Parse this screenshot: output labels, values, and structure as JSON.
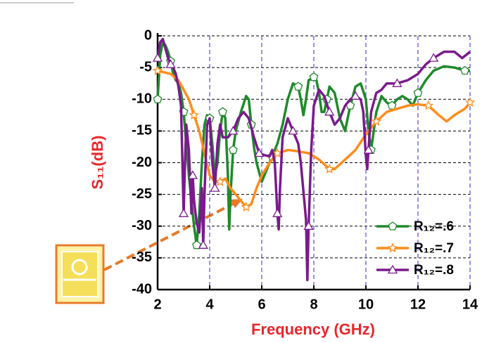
{
  "chart_data": {
    "type": "line",
    "xlabel": "Frequency (GHz)",
    "ylabel": "S₁₁(dB)",
    "xlim": [
      2,
      14
    ],
    "xticks": [
      2,
      4,
      6,
      8,
      10,
      12,
      14
    ],
    "ylim": [
      -40,
      0
    ],
    "yticks": [
      0,
      -5,
      -10,
      -15,
      -20,
      -25,
      -30,
      -35,
      -40
    ],
    "grid": true,
    "xgrid_color": "#2a2ae0",
    "ygrid_color": "#000000",
    "legend": "lower right",
    "series": [
      {
        "name": "R₁₂=.6",
        "color": "#1e8a2a",
        "marker": "pentagon",
        "x": [
          2.0,
          2.1,
          2.2,
          2.3,
          2.4,
          2.5,
          2.6,
          2.7,
          2.8,
          2.9,
          3.0,
          3.1,
          3.2,
          3.3,
          3.4,
          3.5,
          3.6,
          3.7,
          3.8,
          3.9,
          4.0,
          4.1,
          4.2,
          4.3,
          4.4,
          4.5,
          4.6,
          4.7,
          4.75,
          4.8,
          4.9,
          5.0,
          5.2,
          5.4,
          5.5,
          5.6,
          5.7,
          5.8,
          6.0,
          6.2,
          6.4,
          6.6,
          6.8,
          7.0,
          7.2,
          7.4,
          7.5,
          7.6,
          7.7,
          7.8,
          8.0,
          8.1,
          8.2,
          8.3,
          8.4,
          8.5,
          8.6,
          8.8,
          9.0,
          9.2,
          9.4,
          9.6,
          9.8,
          10.0,
          10.1,
          10.2,
          10.3,
          10.4,
          10.6,
          10.8,
          11.0,
          11.2,
          11.4,
          11.6,
          11.8,
          12.0,
          12.3,
          12.6,
          13.0,
          13.4,
          13.8,
          14.0
        ],
        "values": [
          -10,
          -3,
          -1,
          -1.5,
          -2.5,
          -4,
          -6,
          -7,
          -7.5,
          -9,
          -12,
          -17,
          -22,
          -26,
          -30,
          -33,
          -28,
          -20,
          -14,
          -12.5,
          -13,
          -17,
          -22,
          -20,
          -15,
          -12,
          -13,
          -22,
          -30.5,
          -25,
          -18,
          -15,
          -12,
          -9.5,
          -10,
          -14,
          -17.5,
          -20,
          -23,
          -21,
          -19,
          -17,
          -14,
          -10,
          -7.5,
          -8,
          -10,
          -12.5,
          -10,
          -7,
          -6.5,
          -7,
          -9,
          -12,
          -12,
          -10,
          -8,
          -9,
          -13,
          -15,
          -11,
          -8,
          -7.5,
          -10,
          -15,
          -18,
          -15,
          -12,
          -9.5,
          -10.5,
          -11,
          -10,
          -9.5,
          -10,
          -11,
          -9,
          -7,
          -5.5,
          -4.8,
          -5,
          -5.5,
          -5.5
        ]
      },
      {
        "name": "R₁₂=.7",
        "color": "#ff8c1a",
        "marker": "star",
        "x": [
          2.0,
          2.5,
          2.8,
          3.0,
          3.2,
          3.4,
          3.6,
          3.8,
          4.0,
          4.2,
          4.4,
          4.6,
          4.8,
          5.0,
          5.2,
          5.4,
          5.6,
          5.8,
          6.0,
          6.3,
          6.6,
          7.0,
          7.4,
          7.8,
          8.2,
          8.6,
          8.8,
          9.2,
          9.6,
          10.0,
          10.4,
          10.8,
          11.2,
          11.6,
          12.0,
          12.4,
          12.8,
          13.1,
          13.4,
          13.8,
          14.0
        ],
        "values": [
          -5.5,
          -6,
          -7,
          -8.5,
          -10,
          -12.5,
          -15,
          -18.5,
          -22,
          -23,
          -23,
          -22.5,
          -24,
          -25,
          -26,
          -27,
          -26.5,
          -24,
          -22,
          -20,
          -18.5,
          -18,
          -18.2,
          -18.5,
          -19.5,
          -21,
          -21,
          -19.5,
          -18,
          -15.5,
          -13.5,
          -12,
          -11.5,
          -11,
          -10.8,
          -11,
          -12.5,
          -13.5,
          -12.5,
          -11.5,
          -10.5
        ]
      },
      {
        "name": "R₁₂=.8",
        "color": "#7a1a8c",
        "marker": "triangle",
        "x": [
          2.0,
          2.1,
          2.2,
          2.3,
          2.4,
          2.5,
          2.6,
          2.7,
          2.8,
          2.9,
          3.0,
          3.05,
          3.1,
          3.2,
          3.3,
          3.35,
          3.4,
          3.5,
          3.6,
          3.7,
          3.75,
          3.8,
          3.9,
          4.0,
          4.1,
          4.2,
          4.3,
          4.4,
          4.5,
          4.7,
          4.9,
          5.1,
          5.3,
          5.5,
          5.7,
          5.9,
          6.1,
          6.3,
          6.4,
          6.5,
          6.6,
          6.65,
          6.7,
          6.8,
          7.0,
          7.2,
          7.4,
          7.5,
          7.7,
          7.75,
          7.8,
          7.9,
          8.0,
          8.2,
          8.4,
          8.6,
          8.8,
          9.0,
          9.2,
          9.4,
          9.6,
          9.8,
          9.9,
          10.0,
          10.05,
          10.1,
          10.2,
          10.4,
          10.6,
          10.8,
          11.2,
          11.6,
          11.8,
          12.0,
          12.3,
          12.6,
          13.0,
          13.4,
          13.7,
          14.0
        ],
        "values": [
          -3.5,
          -1,
          -0.5,
          -2,
          -3.5,
          -4.5,
          -5,
          -6,
          -8,
          -11,
          -28,
          -20,
          -14,
          -18,
          -28,
          -22,
          -26,
          -29.5,
          -31,
          -24,
          -33,
          -25,
          -14,
          -13,
          -20,
          -24,
          -17,
          -14,
          -16,
          -16,
          -15,
          -13,
          -12,
          -13,
          -16,
          -18.5,
          -18.8,
          -19,
          -18,
          -20,
          -28,
          -30.5,
          -24,
          -16,
          -13,
          -15,
          -17,
          -20,
          -29,
          -38.5,
          -30,
          -18,
          -11,
          -8.5,
          -9.5,
          -12,
          -14,
          -13,
          -11,
          -10,
          -9.5,
          -10,
          -12,
          -19,
          -21,
          -18,
          -12,
          -9,
          -8.5,
          -7.5,
          -7.5,
          -7,
          -6.5,
          -6,
          -4.5,
          -3.5,
          -2.5,
          -2.5,
          -3.5,
          -2.5
        ]
      }
    ]
  }
}
